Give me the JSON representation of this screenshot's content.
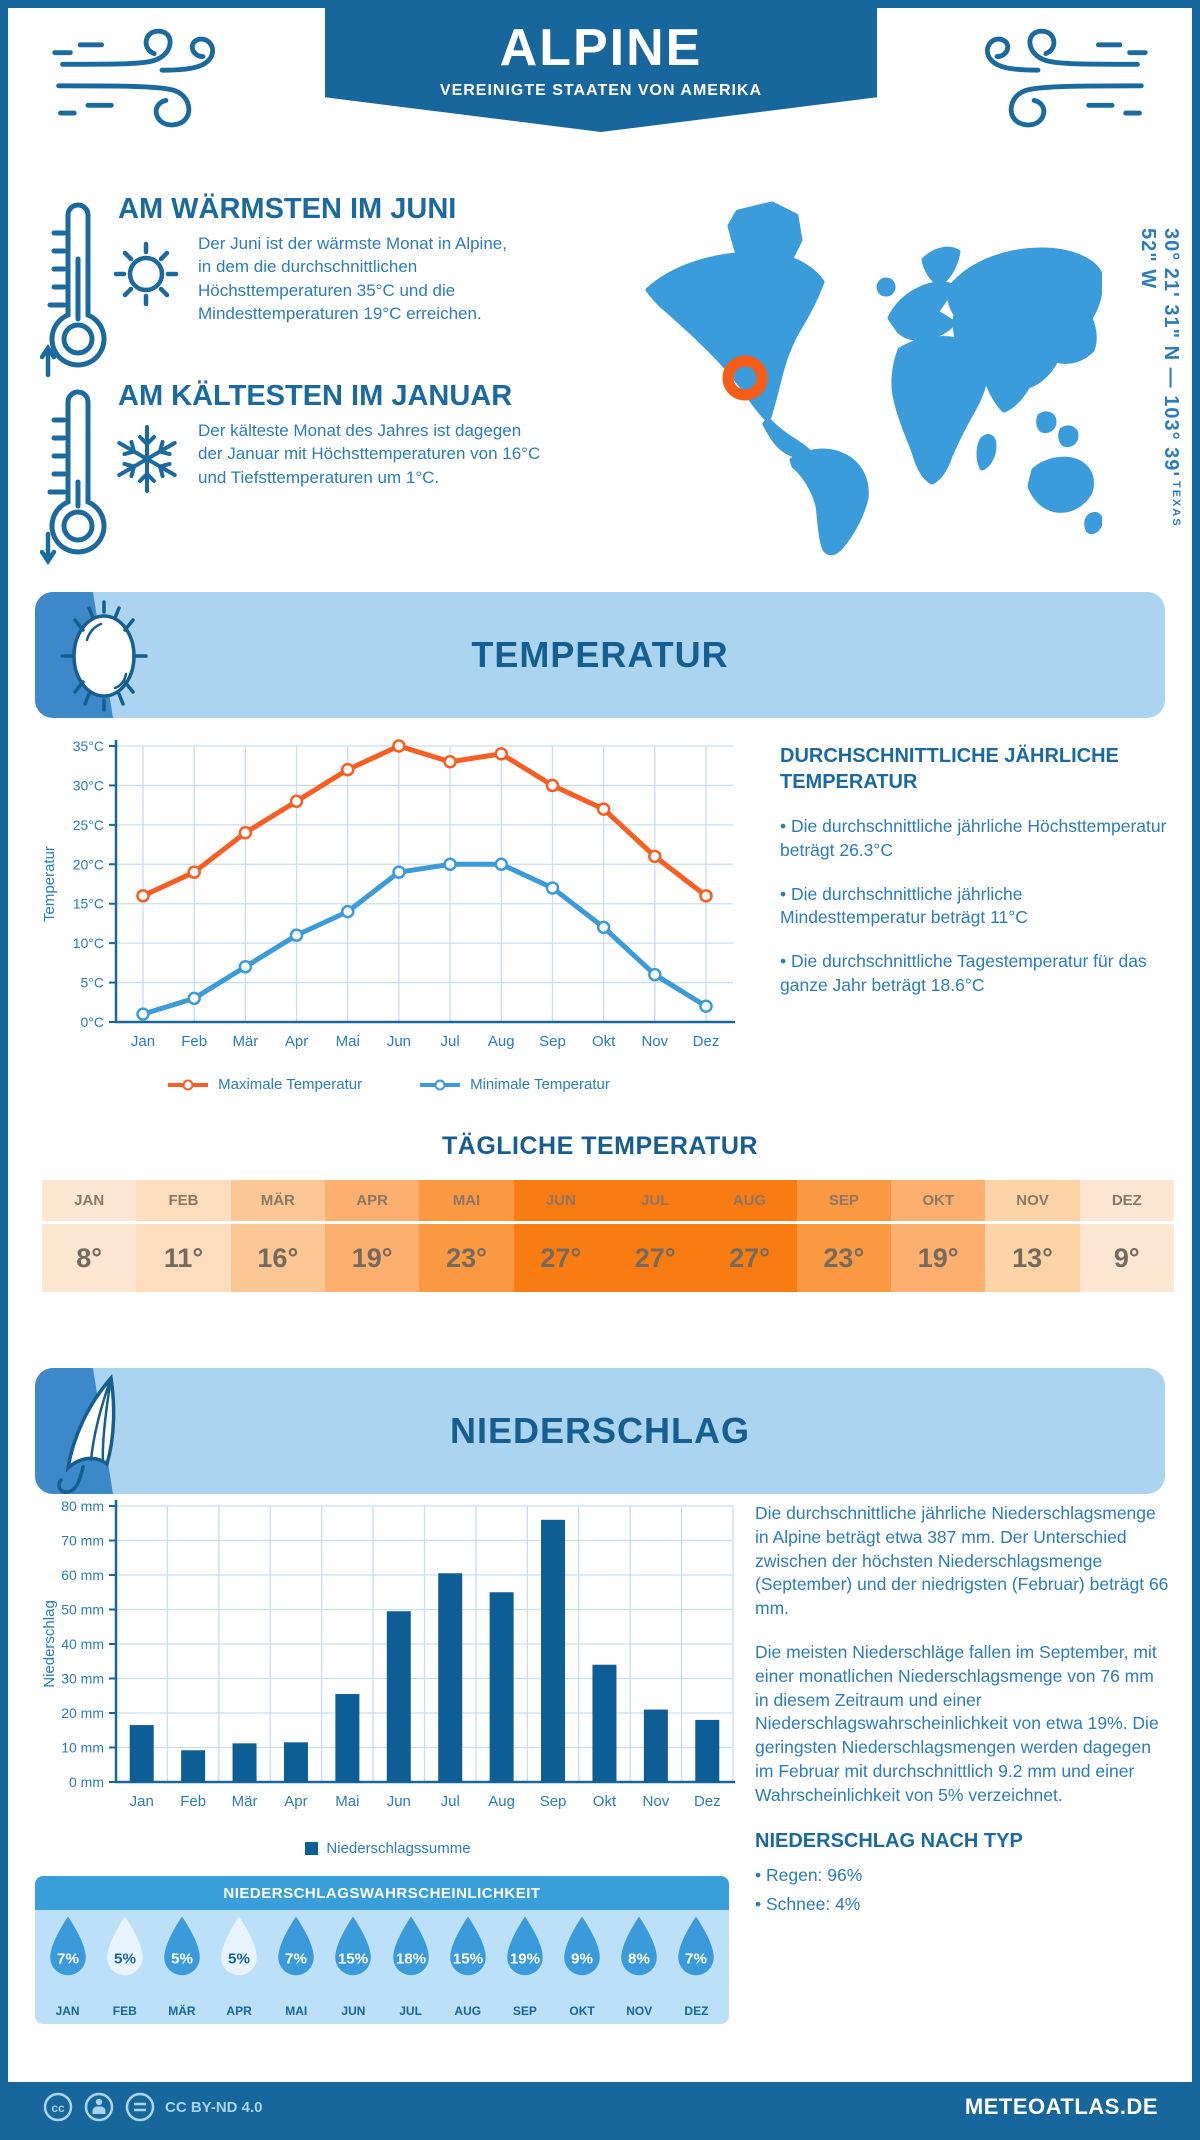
{
  "header": {
    "title": "ALPINE",
    "subtitle": "VEREINIGTE STAATEN VON AMERIKA"
  },
  "geo": {
    "coordinates": "30° 21' 31\" N — 103° 39' 52\" W",
    "region": "TEXAS"
  },
  "facts": {
    "warm": {
      "title": "AM WÄRMSTEN IM JUNI",
      "text": "Der Juni ist der wärmste Monat in Alpine, in dem die durchschnittlichen Höchsttemperaturen 35°C und die Mindesttemperaturen 19°C erreichen."
    },
    "cold": {
      "title": "AM KÄLTESTEN IM JANUAR",
      "text": "Der kälteste Monat des Jahres ist dagegen der Januar mit Höchsttemperaturen von 16°C und Tiefsttemperaturen um 1°C."
    }
  },
  "temperature_section": {
    "banner": "TEMPERATUR",
    "annual": {
      "heading": "DURCHSCHNITTLICHE JÄHRLICHE TEMPERATUR",
      "bullets": [
        "• Die durchschnittliche jährliche Höchsttemperatur beträgt 26.3°C",
        "• Die durchschnittliche jährliche Mindesttemperatur beträgt 11°C",
        "• Die durchschnittliche Tagestemperatur für das ganze Jahr beträgt 18.6°C"
      ]
    },
    "daily": {
      "heading": "TÄGLICHE TEMPERATUR",
      "months": [
        "JAN",
        "FEB",
        "MÄR",
        "APR",
        "MAI",
        "JUN",
        "JUL",
        "AUG",
        "SEP",
        "OKT",
        "NOV",
        "DEZ"
      ],
      "values": [
        "8°",
        "11°",
        "16°",
        "19°",
        "23°",
        "27°",
        "27°",
        "27°",
        "23°",
        "19°",
        "13°",
        "9°"
      ],
      "cell_colors": [
        "#fde7d2",
        "#fdddbe",
        "#fcc795",
        "#fcaf6e",
        "#fb9942",
        "#f97c12",
        "#f97c12",
        "#f97c12",
        "#fb9942",
        "#fcaf6e",
        "#fdd3a8",
        "#fde7d2"
      ]
    }
  },
  "precipitation_section": {
    "banner": "NIEDERSCHLAG",
    "paragraphs": [
      "Die durchschnittliche jährliche Niederschlagsmenge in Alpine beträgt etwa 387 mm. Der Unterschied zwischen der höchsten Niederschlagsmenge (September) und der niedrigsten (Februar) beträgt 66 mm.",
      "Die meisten Niederschläge fallen im September, mit einer monatlichen Niederschlagsmenge von 76 mm in diesem Zeitraum und einer Niederschlagswahrscheinlichkeit von etwa 19%. Die geringsten Niederschlagsmengen werden dagegen im Februar mit durchschnittlich 9.2 mm und einer Wahrscheinlichkeit von 5% verzeichnet."
    ],
    "by_type": {
      "heading": "NIEDERSCHLAG NACH TYP",
      "bullets": [
        "• Regen: 96%",
        "• Schnee: 4%"
      ]
    },
    "probability": {
      "heading": "NIEDERSCHLAGSWAHRSCHEINLICHKEIT",
      "months": [
        "JAN",
        "FEB",
        "MÄR",
        "APR",
        "MAI",
        "JUN",
        "JUL",
        "AUG",
        "SEP",
        "OKT",
        "NOV",
        "DEZ"
      ],
      "values": [
        "7%",
        "5%",
        "5%",
        "5%",
        "7%",
        "15%",
        "18%",
        "15%",
        "19%",
        "9%",
        "8%",
        "7%"
      ],
      "light_indices": [
        1,
        3
      ],
      "drop_color": "#3b9ad9",
      "drop_light_color": "#e8f4fd"
    }
  },
  "chart_data": [
    {
      "type": "line",
      "categories": [
        "Jan",
        "Feb",
        "Mär",
        "Apr",
        "Mai",
        "Jun",
        "Jul",
        "Aug",
        "Sep",
        "Okt",
        "Nov",
        "Dez"
      ],
      "series": [
        {
          "name": "Maximale Temperatur",
          "color": "#f95d22",
          "values": [
            16,
            19,
            24,
            28,
            32,
            35,
            33,
            34,
            30,
            27,
            21,
            16
          ]
        },
        {
          "name": "Minimale Temperatur",
          "color": "#3b9ad9",
          "values": [
            1,
            3,
            7,
            11,
            14,
            19,
            20,
            20,
            17,
            12,
            6,
            2
          ]
        }
      ],
      "title": "",
      "xlabel": "",
      "ylabel": "Temperatur",
      "ylim": [
        0,
        35
      ],
      "ytick_step": 5,
      "unit": "°C",
      "grid": true,
      "legend_position": "bottom"
    },
    {
      "type": "bar",
      "categories": [
        "Jan",
        "Feb",
        "Mär",
        "Apr",
        "Mai",
        "Jun",
        "Jul",
        "Aug",
        "Sep",
        "Okt",
        "Nov",
        "Dez"
      ],
      "series": [
        {
          "name": "Niederschlagssumme",
          "color": "#0d5e94",
          "values": [
            16.5,
            9.2,
            11.2,
            11.5,
            25.5,
            49.5,
            60.5,
            55,
            76,
            34,
            21,
            18
          ]
        }
      ],
      "title": "",
      "xlabel": "",
      "ylabel": "Niederschlag",
      "ylim": [
        0,
        80
      ],
      "ytick_step": 10,
      "unit": " mm",
      "grid": true,
      "legend_position": "bottom"
    }
  ],
  "footer": {
    "license": "CC BY-ND 4.0",
    "site": "METEOATLAS.DE"
  },
  "colors": {
    "primary_dark_blue": "#17669c",
    "body_blue": "#2b7cb9",
    "banner_light_blue": "#abd4f1",
    "map_blue": "#3b9cdc",
    "marker_orange": "#f85c16",
    "grid_blue": "#cadded"
  }
}
